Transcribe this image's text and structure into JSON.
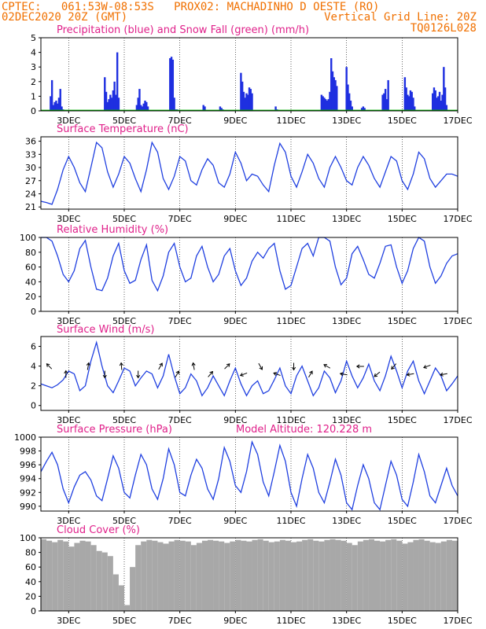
{
  "header": {
    "line1_left": "CPTEC:   061:53W-08:53S   PROX02: MACHADINHO D OESTE (RO)",
    "line2_left": "02DEC2020 20Z (GMT)",
    "line2_right": "Vertical Grid Line: 20Z",
    "line3_right": "TQ0126L028",
    "color": "#f07000"
  },
  "x_axis": {
    "tick_labels": [
      "3DEC",
      "5DEC",
      "7DEC",
      "9DEC",
      "11DEC",
      "13DEC",
      "15DEC",
      "17DEC"
    ],
    "tick_days": [
      3,
      5,
      7,
      9,
      11,
      13,
      15,
      17
    ],
    "start_day": 2.0,
    "end_day": 17.0
  },
  "colors": {
    "title": "#e0208a",
    "precip": "#1e2fe0",
    "snow": "#00b000",
    "line": "#2040e0",
    "cloud": "#a8a8a8",
    "arrow": "#000000"
  },
  "chart_data": [
    {
      "id": "precip",
      "type": "bar",
      "title": "Precipitation (blue) and Snow Fall (green) (mm/h)",
      "ylim": [
        0,
        5
      ],
      "yticks": [
        0,
        1,
        2,
        3,
        4,
        5
      ],
      "series": [
        {
          "name": "Precipitation",
          "x": [
            2.35,
            2.4,
            2.45,
            2.5,
            2.55,
            2.6,
            2.65,
            2.7,
            2.75,
            2.8,
            4.3,
            4.35,
            4.4,
            4.45,
            4.5,
            4.55,
            4.6,
            4.65,
            4.7,
            4.75,
            4.8,
            5.45,
            5.5,
            5.55,
            5.6,
            5.65,
            5.7,
            5.75,
            5.8,
            5.85,
            6.65,
            6.7,
            6.75,
            6.8,
            6.85,
            6.9,
            7.85,
            7.9,
            8.45,
            8.5,
            8.55,
            9.2,
            9.25,
            9.3,
            9.35,
            9.4,
            9.45,
            9.5,
            9.55,
            9.6,
            10.45,
            10.5,
            12.1,
            12.15,
            12.2,
            12.25,
            12.3,
            12.35,
            12.4,
            12.45,
            12.5,
            12.55,
            12.6,
            12.65,
            13.0,
            13.05,
            13.1,
            13.15,
            13.2,
            13.55,
            13.6,
            13.65,
            14.3,
            14.35,
            14.4,
            14.45,
            14.5,
            15.1,
            15.15,
            15.2,
            15.25,
            15.3,
            15.35,
            15.4,
            15.45,
            16.1,
            16.15,
            16.2,
            16.25,
            16.3,
            16.35,
            16.4,
            16.45,
            16.5,
            16.55,
            16.6
          ],
          "values": [
            1.0,
            2.1,
            0.4,
            0.6,
            0.7,
            0.5,
            0.9,
            1.5,
            0.3,
            0.1,
            2.3,
            1.3,
            0.6,
            0.8,
            1.1,
            0.9,
            1.4,
            2.0,
            1.1,
            4.0,
            0.9,
            0.4,
            0.9,
            1.5,
            0.4,
            0.3,
            0.5,
            0.7,
            0.6,
            0.3,
            3.6,
            3.7,
            3.5,
            0.9,
            0.1,
            0.1,
            0.4,
            0.3,
            0.3,
            0.2,
            0.1,
            2.6,
            2.0,
            1.3,
            0.9,
            1.2,
            1.1,
            1.6,
            1.5,
            1.2,
            0.3,
            0.1,
            1.1,
            1.0,
            0.9,
            0.8,
            0.7,
            0.8,
            1.3,
            3.6,
            2.7,
            2.3,
            2.1,
            1.7,
            3.0,
            1.8,
            1.2,
            0.7,
            0.3,
            0.2,
            0.3,
            0.2,
            1.1,
            1.2,
            1.5,
            0.8,
            2.1,
            2.3,
            1.6,
            1.1,
            1.0,
            1.4,
            1.3,
            0.9,
            0.3,
            1.2,
            1.6,
            1.4,
            0.9,
            1.0,
            1.3,
            0.7,
            1.1,
            3.0,
            1.6,
            0.4
          ]
        },
        {
          "name": "Snow Fall",
          "values": [
            0
          ]
        }
      ]
    },
    {
      "id": "temp",
      "type": "line",
      "title": "Surface Temperature (nC)",
      "ylim": [
        20.5,
        37
      ],
      "yticks": [
        21,
        24,
        27,
        30,
        33,
        36
      ],
      "x": [
        2.0,
        2.2,
        2.4,
        2.6,
        2.8,
        3.0,
        3.2,
        3.4,
        3.6,
        3.8,
        4.0,
        4.2,
        4.4,
        4.6,
        4.8,
        5.0,
        5.2,
        5.4,
        5.6,
        5.8,
        6.0,
        6.2,
        6.4,
        6.6,
        6.8,
        7.0,
        7.2,
        7.4,
        7.6,
        7.8,
        8.0,
        8.2,
        8.4,
        8.6,
        8.8,
        9.0,
        9.2,
        9.4,
        9.6,
        9.8,
        10.0,
        10.2,
        10.4,
        10.6,
        10.8,
        11.0,
        11.2,
        11.4,
        11.6,
        11.8,
        12.0,
        12.2,
        12.4,
        12.6,
        12.8,
        13.0,
        13.2,
        13.4,
        13.6,
        13.8,
        14.0,
        14.2,
        14.4,
        14.6,
        14.8,
        15.0,
        15.2,
        15.4,
        15.6,
        15.8,
        16.0,
        16.2,
        16.4,
        16.6,
        16.8,
        17.0
      ],
      "y": [
        22.3,
        22.0,
        21.6,
        25.0,
        29.5,
        32.5,
        30.0,
        26.5,
        24.5,
        30.0,
        35.7,
        34.5,
        29.0,
        25.5,
        28.5,
        32.5,
        31.0,
        27.5,
        24.5,
        29.5,
        35.7,
        33.5,
        27.5,
        25.0,
        28.0,
        32.5,
        31.5,
        27.0,
        26.0,
        29.5,
        32.0,
        30.5,
        26.5,
        25.5,
        28.5,
        33.5,
        31.0,
        27.0,
        28.5,
        28.0,
        26.0,
        24.5,
        30.5,
        35.5,
        33.5,
        28.0,
        25.5,
        29.0,
        33.0,
        31.0,
        27.5,
        25.5,
        30.0,
        32.5,
        30.0,
        27.0,
        26.0,
        30.0,
        32.5,
        30.5,
        27.5,
        25.5,
        29.0,
        32.5,
        31.5,
        27.0,
        25.0,
        28.5,
        33.5,
        32.0,
        27.5,
        25.5,
        27.0,
        28.5,
        28.5,
        28.0
      ]
    },
    {
      "id": "rh",
      "type": "line",
      "title": "Relative Humidity (%)",
      "ylim": [
        0,
        100
      ],
      "yticks": [
        0,
        20,
        40,
        60,
        80,
        100
      ],
      "x": [
        2.0,
        2.2,
        2.4,
        2.6,
        2.8,
        3.0,
        3.2,
        3.4,
        3.6,
        3.8,
        4.0,
        4.2,
        4.4,
        4.6,
        4.8,
        5.0,
        5.2,
        5.4,
        5.6,
        5.8,
        6.0,
        6.2,
        6.4,
        6.6,
        6.8,
        7.0,
        7.2,
        7.4,
        7.6,
        7.8,
        8.0,
        8.2,
        8.4,
        8.6,
        8.8,
        9.0,
        9.2,
        9.4,
        9.6,
        9.8,
        10.0,
        10.2,
        10.4,
        10.6,
        10.8,
        11.0,
        11.2,
        11.4,
        11.6,
        11.8,
        12.0,
        12.2,
        12.4,
        12.6,
        12.8,
        13.0,
        13.2,
        13.4,
        13.6,
        13.8,
        14.0,
        14.2,
        14.4,
        14.6,
        14.8,
        15.0,
        15.2,
        15.4,
        15.6,
        15.8,
        16.0,
        16.2,
        16.4,
        16.6,
        16.8,
        17.0
      ],
      "y": [
        100,
        100,
        95,
        75,
        50,
        40,
        55,
        85,
        96,
        60,
        30,
        28,
        45,
        75,
        92,
        55,
        38,
        42,
        70,
        90,
        42,
        28,
        48,
        80,
        92,
        60,
        40,
        45,
        75,
        88,
        60,
        40,
        50,
        75,
        85,
        55,
        35,
        45,
        68,
        80,
        72,
        85,
        92,
        55,
        30,
        35,
        60,
        85,
        92,
        75,
        100,
        100,
        95,
        60,
        36,
        45,
        78,
        88,
        70,
        50,
        45,
        65,
        88,
        90,
        60,
        38,
        55,
        85,
        100,
        95,
        60,
        38,
        48,
        65,
        75,
        78
      ]
    },
    {
      "id": "wind",
      "type": "line",
      "title": "Surface Wind (m/s)",
      "ylim": [
        -0.5,
        7
      ],
      "yticks": [
        0,
        2,
        4,
        6
      ],
      "x": [
        2.0,
        2.2,
        2.4,
        2.6,
        2.8,
        3.0,
        3.2,
        3.4,
        3.6,
        3.8,
        4.0,
        4.2,
        4.4,
        4.6,
        4.8,
        5.0,
        5.2,
        5.4,
        5.6,
        5.8,
        6.0,
        6.2,
        6.4,
        6.6,
        6.8,
        7.0,
        7.2,
        7.4,
        7.6,
        7.8,
        8.0,
        8.2,
        8.4,
        8.6,
        8.8,
        9.0,
        9.2,
        9.4,
        9.6,
        9.8,
        10.0,
        10.2,
        10.4,
        10.6,
        10.8,
        11.0,
        11.2,
        11.4,
        11.6,
        11.8,
        12.0,
        12.2,
        12.4,
        12.6,
        12.8,
        13.0,
        13.2,
        13.4,
        13.6,
        13.8,
        14.0,
        14.2,
        14.4,
        14.6,
        14.8,
        15.0,
        15.2,
        15.4,
        15.6,
        15.8,
        16.0,
        16.2,
        16.4,
        16.6,
        16.8,
        17.0
      ],
      "y": [
        2.2,
        2.0,
        1.8,
        2.1,
        2.6,
        3.5,
        3.2,
        1.5,
        2.0,
        4.5,
        6.4,
        4.0,
        2.0,
        1.3,
        2.5,
        3.8,
        3.5,
        2.0,
        2.8,
        3.5,
        3.2,
        1.8,
        3.0,
        5.2,
        3.0,
        1.2,
        1.8,
        3.2,
        2.5,
        1.0,
        1.8,
        3.0,
        2.0,
        1.0,
        2.5,
        3.8,
        2.2,
        1.0,
        2.0,
        2.5,
        1.2,
        1.5,
        2.6,
        3.8,
        2.0,
        1.2,
        3.0,
        4.0,
        2.5,
        1.0,
        1.8,
        3.5,
        2.8,
        1.3,
        2.5,
        4.5,
        3.0,
        1.8,
        2.8,
        4.2,
        2.5,
        1.5,
        3.0,
        5.0,
        3.5,
        1.8,
        3.5,
        4.5,
        2.5,
        1.2,
        2.5,
        3.8,
        3.0,
        1.5,
        2.2,
        3.0
      ],
      "arrows": {
        "x": [
          2.3,
          2.9,
          3.7,
          4.3,
          4.9,
          5.5,
          6.3,
          6.9,
          7.5,
          8.1,
          8.7,
          9.3,
          9.9,
          10.5,
          11.1,
          11.7,
          12.3,
          12.9,
          13.5,
          14.1,
          14.7,
          15.3,
          15.9,
          16.5
        ],
        "dir_deg": [
          135,
          90,
          80,
          270,
          95,
          270,
          60,
          60,
          100,
          50,
          45,
          200,
          300,
          160,
          270,
          60,
          150,
          170,
          180,
          220,
          230,
          190,
          200,
          190
        ]
      }
    },
    {
      "id": "pressure",
      "type": "line",
      "title": "Surface Pressure (hPa)",
      "annotation": "Model Altitude: 120.228 m",
      "ylim": [
        989.3,
        1000
      ],
      "yticks": [
        990,
        992,
        994,
        996,
        998,
        1000
      ],
      "x": [
        2.0,
        2.2,
        2.4,
        2.6,
        2.8,
        3.0,
        3.2,
        3.4,
        3.6,
        3.8,
        4.0,
        4.2,
        4.4,
        4.6,
        4.8,
        5.0,
        5.2,
        5.4,
        5.6,
        5.8,
        6.0,
        6.2,
        6.4,
        6.6,
        6.8,
        7.0,
        7.2,
        7.4,
        7.6,
        7.8,
        8.0,
        8.2,
        8.4,
        8.6,
        8.8,
        9.0,
        9.2,
        9.4,
        9.6,
        9.8,
        10.0,
        10.2,
        10.4,
        10.6,
        10.8,
        11.0,
        11.2,
        11.4,
        11.6,
        11.8,
        12.0,
        12.2,
        12.4,
        12.6,
        12.8,
        13.0,
        13.2,
        13.4,
        13.6,
        13.8,
        14.0,
        14.2,
        14.4,
        14.6,
        14.8,
        15.0,
        15.2,
        15.4,
        15.6,
        15.8,
        16.0,
        16.2,
        16.4,
        16.6,
        16.8,
        17.0
      ],
      "y": [
        995.0,
        996.5,
        997.8,
        996.0,
        992.5,
        990.5,
        992.8,
        994.5,
        995.0,
        993.8,
        991.5,
        990.8,
        994.0,
        997.3,
        995.5,
        992.0,
        991.2,
        994.5,
        997.5,
        996.0,
        992.5,
        991.0,
        994.0,
        998.3,
        996.0,
        992.0,
        991.5,
        994.5,
        996.8,
        995.5,
        992.5,
        991.0,
        994.0,
        998.5,
        996.5,
        993.0,
        992.0,
        995.0,
        999.3,
        997.5,
        993.5,
        991.5,
        995.0,
        998.8,
        996.5,
        992.0,
        990.0,
        994.0,
        997.5,
        995.5,
        992.0,
        990.5,
        993.5,
        996.8,
        994.5,
        990.5,
        989.5,
        993.0,
        996.0,
        994.0,
        990.5,
        989.5,
        993.0,
        996.5,
        994.5,
        991.0,
        990.0,
        993.5,
        997.5,
        995.0,
        991.5,
        990.5,
        993.0,
        995.5,
        993.0,
        991.5
      ]
    },
    {
      "id": "cloud",
      "type": "area",
      "title": "Cloud Cover (%)",
      "ylim": [
        0,
        100
      ],
      "yticks": [
        0,
        20,
        40,
        60,
        80,
        100
      ],
      "x": [
        2.0,
        2.2,
        2.4,
        2.6,
        2.8,
        3.0,
        3.2,
        3.4,
        3.6,
        3.8,
        4.0,
        4.2,
        4.4,
        4.6,
        4.8,
        5.0,
        5.2,
        5.4,
        5.6,
        5.8,
        6.0,
        6.2,
        6.4,
        6.6,
        6.8,
        7.0,
        7.2,
        7.4,
        7.6,
        7.8,
        8.0,
        8.2,
        8.4,
        8.6,
        8.8,
        9.0,
        9.2,
        9.4,
        9.6,
        9.8,
        10.0,
        10.2,
        10.4,
        10.6,
        10.8,
        11.0,
        11.2,
        11.4,
        11.6,
        11.8,
        12.0,
        12.2,
        12.4,
        12.6,
        12.8,
        13.0,
        13.2,
        13.4,
        13.6,
        13.8,
        14.0,
        14.2,
        14.4,
        14.6,
        14.8,
        15.0,
        15.2,
        15.4,
        15.6,
        15.8,
        16.0,
        16.2,
        16.4,
        16.6,
        16.8,
        17.0
      ],
      "y": [
        98,
        96,
        94,
        97,
        95,
        88,
        93,
        96,
        95,
        90,
        82,
        80,
        75,
        50,
        35,
        8,
        60,
        90,
        95,
        97,
        96,
        94,
        92,
        95,
        97,
        96,
        95,
        90,
        93,
        96,
        97,
        96,
        95,
        93,
        95,
        97,
        96,
        95,
        97,
        98,
        96,
        94,
        95,
        97,
        96,
        94,
        95,
        97,
        98,
        96,
        95,
        97,
        98,
        97,
        96,
        93,
        90,
        95,
        97,
        98,
        96,
        95,
        97,
        98,
        96,
        92,
        94,
        97,
        98,
        96,
        94,
        93,
        95,
        97,
        96,
        95
      ]
    }
  ]
}
